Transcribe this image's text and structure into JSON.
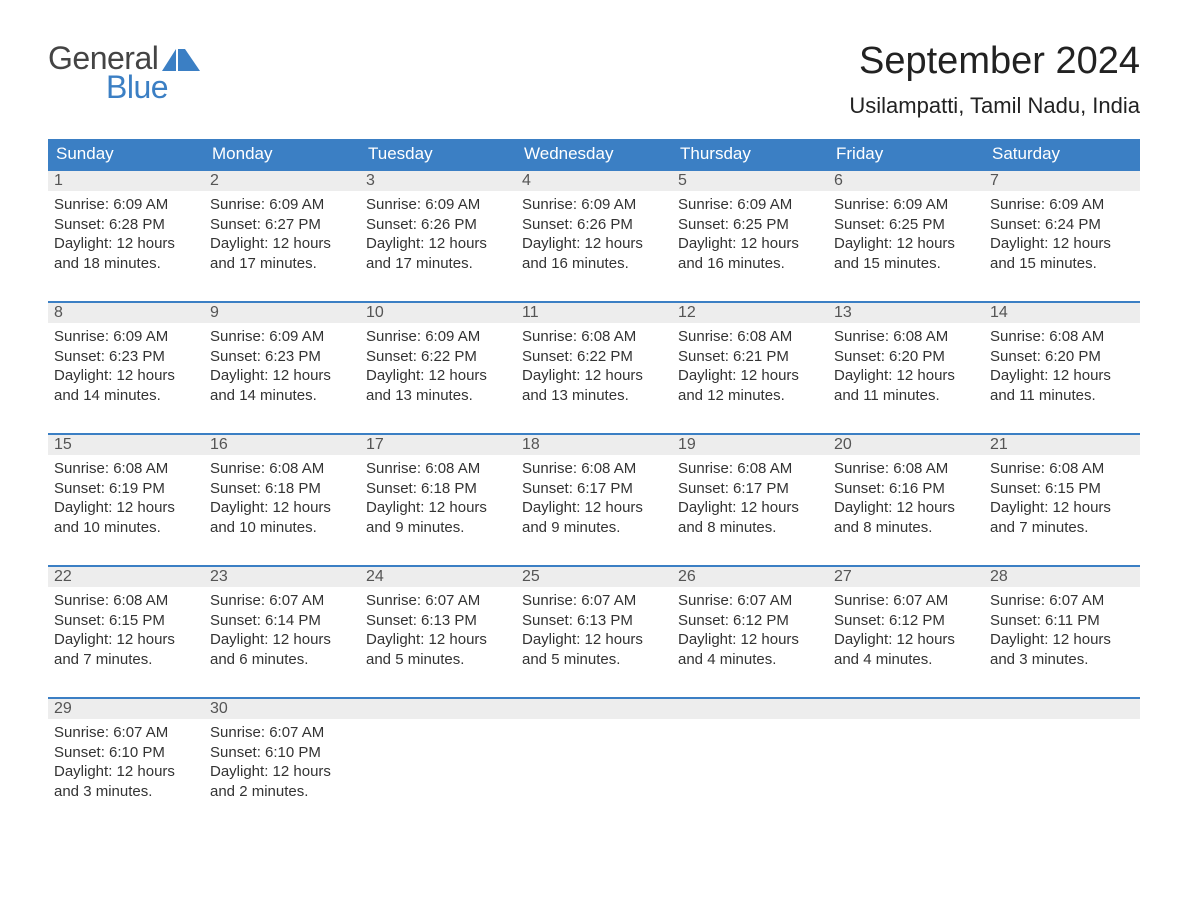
{
  "logo": {
    "text_general": "General",
    "text_blue": "Blue",
    "flag_color": "#3b7fc4"
  },
  "title": "September 2024",
  "location": "Usilampatti, Tamil Nadu, India",
  "colors": {
    "header_bg": "#3b7fc4",
    "header_text": "#ffffff",
    "daynum_bg": "#ededed",
    "daynum_border": "#3b7fc4",
    "body_text": "#333333",
    "title_text": "#222222"
  },
  "day_headers": [
    "Sunday",
    "Monday",
    "Tuesday",
    "Wednesday",
    "Thursday",
    "Friday",
    "Saturday"
  ],
  "weeks": [
    [
      {
        "num": "1",
        "sunrise": "Sunrise: 6:09 AM",
        "sunset": "Sunset: 6:28 PM",
        "daylight1": "Daylight: 12 hours",
        "daylight2": "and 18 minutes."
      },
      {
        "num": "2",
        "sunrise": "Sunrise: 6:09 AM",
        "sunset": "Sunset: 6:27 PM",
        "daylight1": "Daylight: 12 hours",
        "daylight2": "and 17 minutes."
      },
      {
        "num": "3",
        "sunrise": "Sunrise: 6:09 AM",
        "sunset": "Sunset: 6:26 PM",
        "daylight1": "Daylight: 12 hours",
        "daylight2": "and 17 minutes."
      },
      {
        "num": "4",
        "sunrise": "Sunrise: 6:09 AM",
        "sunset": "Sunset: 6:26 PM",
        "daylight1": "Daylight: 12 hours",
        "daylight2": "and 16 minutes."
      },
      {
        "num": "5",
        "sunrise": "Sunrise: 6:09 AM",
        "sunset": "Sunset: 6:25 PM",
        "daylight1": "Daylight: 12 hours",
        "daylight2": "and 16 minutes."
      },
      {
        "num": "6",
        "sunrise": "Sunrise: 6:09 AM",
        "sunset": "Sunset: 6:25 PM",
        "daylight1": "Daylight: 12 hours",
        "daylight2": "and 15 minutes."
      },
      {
        "num": "7",
        "sunrise": "Sunrise: 6:09 AM",
        "sunset": "Sunset: 6:24 PM",
        "daylight1": "Daylight: 12 hours",
        "daylight2": "and 15 minutes."
      }
    ],
    [
      {
        "num": "8",
        "sunrise": "Sunrise: 6:09 AM",
        "sunset": "Sunset: 6:23 PM",
        "daylight1": "Daylight: 12 hours",
        "daylight2": "and 14 minutes."
      },
      {
        "num": "9",
        "sunrise": "Sunrise: 6:09 AM",
        "sunset": "Sunset: 6:23 PM",
        "daylight1": "Daylight: 12 hours",
        "daylight2": "and 14 minutes."
      },
      {
        "num": "10",
        "sunrise": "Sunrise: 6:09 AM",
        "sunset": "Sunset: 6:22 PM",
        "daylight1": "Daylight: 12 hours",
        "daylight2": "and 13 minutes."
      },
      {
        "num": "11",
        "sunrise": "Sunrise: 6:08 AM",
        "sunset": "Sunset: 6:22 PM",
        "daylight1": "Daylight: 12 hours",
        "daylight2": "and 13 minutes."
      },
      {
        "num": "12",
        "sunrise": "Sunrise: 6:08 AM",
        "sunset": "Sunset: 6:21 PM",
        "daylight1": "Daylight: 12 hours",
        "daylight2": "and 12 minutes."
      },
      {
        "num": "13",
        "sunrise": "Sunrise: 6:08 AM",
        "sunset": "Sunset: 6:20 PM",
        "daylight1": "Daylight: 12 hours",
        "daylight2": "and 11 minutes."
      },
      {
        "num": "14",
        "sunrise": "Sunrise: 6:08 AM",
        "sunset": "Sunset: 6:20 PM",
        "daylight1": "Daylight: 12 hours",
        "daylight2": "and 11 minutes."
      }
    ],
    [
      {
        "num": "15",
        "sunrise": "Sunrise: 6:08 AM",
        "sunset": "Sunset: 6:19 PM",
        "daylight1": "Daylight: 12 hours",
        "daylight2": "and 10 minutes."
      },
      {
        "num": "16",
        "sunrise": "Sunrise: 6:08 AM",
        "sunset": "Sunset: 6:18 PM",
        "daylight1": "Daylight: 12 hours",
        "daylight2": "and 10 minutes."
      },
      {
        "num": "17",
        "sunrise": "Sunrise: 6:08 AM",
        "sunset": "Sunset: 6:18 PM",
        "daylight1": "Daylight: 12 hours",
        "daylight2": "and 9 minutes."
      },
      {
        "num": "18",
        "sunrise": "Sunrise: 6:08 AM",
        "sunset": "Sunset: 6:17 PM",
        "daylight1": "Daylight: 12 hours",
        "daylight2": "and 9 minutes."
      },
      {
        "num": "19",
        "sunrise": "Sunrise: 6:08 AM",
        "sunset": "Sunset: 6:17 PM",
        "daylight1": "Daylight: 12 hours",
        "daylight2": "and 8 minutes."
      },
      {
        "num": "20",
        "sunrise": "Sunrise: 6:08 AM",
        "sunset": "Sunset: 6:16 PM",
        "daylight1": "Daylight: 12 hours",
        "daylight2": "and 8 minutes."
      },
      {
        "num": "21",
        "sunrise": "Sunrise: 6:08 AM",
        "sunset": "Sunset: 6:15 PM",
        "daylight1": "Daylight: 12 hours",
        "daylight2": "and 7 minutes."
      }
    ],
    [
      {
        "num": "22",
        "sunrise": "Sunrise: 6:08 AM",
        "sunset": "Sunset: 6:15 PM",
        "daylight1": "Daylight: 12 hours",
        "daylight2": "and 7 minutes."
      },
      {
        "num": "23",
        "sunrise": "Sunrise: 6:07 AM",
        "sunset": "Sunset: 6:14 PM",
        "daylight1": "Daylight: 12 hours",
        "daylight2": "and 6 minutes."
      },
      {
        "num": "24",
        "sunrise": "Sunrise: 6:07 AM",
        "sunset": "Sunset: 6:13 PM",
        "daylight1": "Daylight: 12 hours",
        "daylight2": "and 5 minutes."
      },
      {
        "num": "25",
        "sunrise": "Sunrise: 6:07 AM",
        "sunset": "Sunset: 6:13 PM",
        "daylight1": "Daylight: 12 hours",
        "daylight2": "and 5 minutes."
      },
      {
        "num": "26",
        "sunrise": "Sunrise: 6:07 AM",
        "sunset": "Sunset: 6:12 PM",
        "daylight1": "Daylight: 12 hours",
        "daylight2": "and 4 minutes."
      },
      {
        "num": "27",
        "sunrise": "Sunrise: 6:07 AM",
        "sunset": "Sunset: 6:12 PM",
        "daylight1": "Daylight: 12 hours",
        "daylight2": "and 4 minutes."
      },
      {
        "num": "28",
        "sunrise": "Sunrise: 6:07 AM",
        "sunset": "Sunset: 6:11 PM",
        "daylight1": "Daylight: 12 hours",
        "daylight2": "and 3 minutes."
      }
    ],
    [
      {
        "num": "29",
        "sunrise": "Sunrise: 6:07 AM",
        "sunset": "Sunset: 6:10 PM",
        "daylight1": "Daylight: 12 hours",
        "daylight2": "and 3 minutes."
      },
      {
        "num": "30",
        "sunrise": "Sunrise: 6:07 AM",
        "sunset": "Sunset: 6:10 PM",
        "daylight1": "Daylight: 12 hours",
        "daylight2": "and 2 minutes."
      },
      {
        "empty": true
      },
      {
        "empty": true
      },
      {
        "empty": true
      },
      {
        "empty": true
      },
      {
        "empty": true
      }
    ]
  ]
}
